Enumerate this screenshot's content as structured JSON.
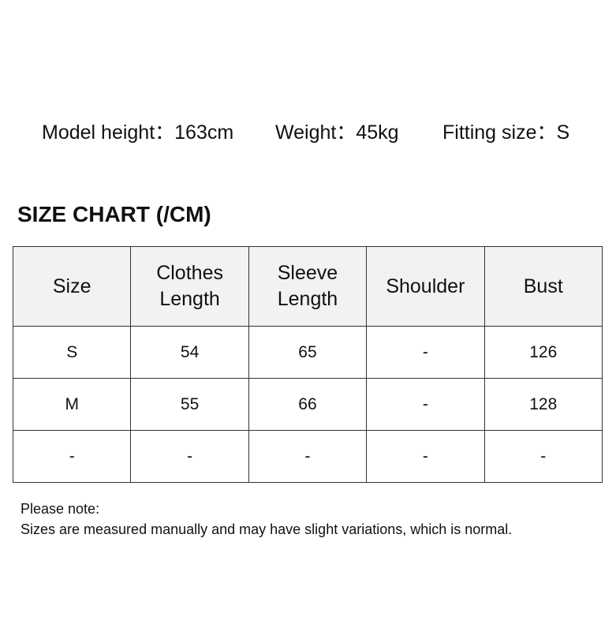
{
  "model_info": {
    "height": "Model height：163cm",
    "weight": "Weight：45kg",
    "fitting_size": "Fitting size：S"
  },
  "title": "SIZE CHART (/CM)",
  "table": {
    "headers": [
      [
        "Size"
      ],
      [
        "Clothes",
        "Length"
      ],
      [
        "Sleeve",
        "Length"
      ],
      [
        "Shoulder"
      ],
      [
        "Bust"
      ]
    ],
    "rows": [
      [
        "S",
        "54",
        "65",
        "-",
        "126"
      ],
      [
        "M",
        "55",
        "66",
        "-",
        "128"
      ],
      [
        "-",
        "-",
        "-",
        "-",
        "-"
      ]
    ]
  },
  "note": {
    "heading": "Please note:",
    "text": "Sizes are measured manually and may have slight variations, which is normal."
  },
  "colors": {
    "header_bg": "#f2f2f2",
    "border": "#333333"
  }
}
